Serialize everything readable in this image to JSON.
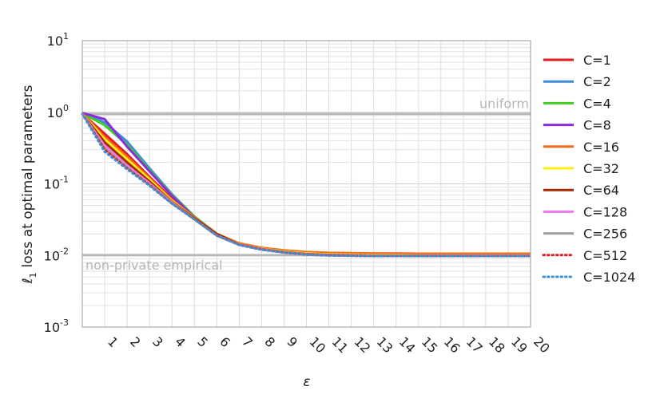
{
  "chart_data": {
    "type": "line",
    "title": "",
    "xlabel": "ε",
    "ylabel": "ℓ₁ loss at optimal parameters",
    "ylabel_main": "loss at optimal parameters",
    "ylabel_symbol": "ℓ",
    "ylabel_subscript": "1",
    "y_scale": "log",
    "ylim": [
      0.001,
      10
    ],
    "xlim": [
      0,
      20
    ],
    "x_ticks": [
      1,
      2,
      3,
      4,
      5,
      6,
      7,
      8,
      9,
      10,
      11,
      12,
      13,
      14,
      15,
      16,
      17,
      18,
      19,
      20
    ],
    "y_ticks": [
      {
        "base": "10",
        "exp": "-3"
      },
      {
        "base": "10",
        "exp": "-2"
      },
      {
        "base": "10",
        "exp": "-1"
      },
      {
        "base": "10",
        "exp": "0"
      },
      {
        "base": "10",
        "exp": "1"
      }
    ],
    "grid": true,
    "legend_position": "right",
    "reference_lines": [
      {
        "label": "uniform",
        "y": 0.95
      },
      {
        "label": "non-private empirical",
        "y": 0.0101
      }
    ],
    "x": [
      0,
      1,
      2,
      3,
      4,
      5,
      6,
      7,
      8,
      9,
      10,
      11,
      12,
      13,
      14,
      15,
      16,
      17,
      18,
      19,
      20
    ],
    "series": [
      {
        "name": "C=1",
        "color": "#e41a1c",
        "style": "solid",
        "values": [
          0.95,
          0.5,
          0.26,
          0.125,
          0.062,
          0.034,
          0.02,
          0.0145,
          0.0125,
          0.0115,
          0.0108,
          0.0105,
          0.0104,
          0.0103,
          0.0103,
          0.0102,
          0.0102,
          0.0102,
          0.0102,
          0.0102,
          0.0102
        ]
      },
      {
        "name": "C=2",
        "color": "#3b8fd9",
        "style": "solid",
        "values": [
          0.97,
          0.72,
          0.39,
          0.165,
          0.072,
          0.035,
          0.02,
          0.0145,
          0.0125,
          0.0115,
          0.0108,
          0.0104,
          0.0103,
          0.0102,
          0.0102,
          0.0101,
          0.0101,
          0.0101,
          0.0101,
          0.0101,
          0.0101
        ]
      },
      {
        "name": "C=4",
        "color": "#44cc22",
        "style": "solid",
        "values": [
          0.97,
          0.66,
          0.35,
          0.155,
          0.07,
          0.035,
          0.02,
          0.0146,
          0.0126,
          0.0115,
          0.0108,
          0.0105,
          0.0104,
          0.0103,
          0.0103,
          0.0102,
          0.0102,
          0.0102,
          0.0102,
          0.0102,
          0.0102
        ]
      },
      {
        "name": "C=8",
        "color": "#8a2be2",
        "style": "solid",
        "values": [
          0.98,
          0.8,
          0.33,
          0.15,
          0.068,
          0.034,
          0.02,
          0.0145,
          0.0125,
          0.0114,
          0.0107,
          0.0103,
          0.0102,
          0.0101,
          0.0101,
          0.01,
          0.01,
          0.01,
          0.01,
          0.01,
          0.01
        ]
      },
      {
        "name": "C=16",
        "color": "#f26b1d",
        "style": "solid",
        "values": [
          0.96,
          0.45,
          0.24,
          0.12,
          0.06,
          0.034,
          0.02,
          0.0148,
          0.0128,
          0.0118,
          0.0112,
          0.0109,
          0.0108,
          0.0107,
          0.0107,
          0.0106,
          0.0106,
          0.0106,
          0.0106,
          0.0106,
          0.0106
        ]
      },
      {
        "name": "C=32",
        "color": "#ffee11",
        "style": "solid",
        "values": [
          0.95,
          0.42,
          0.22,
          0.115,
          0.058,
          0.033,
          0.02,
          0.0144,
          0.0124,
          0.0114,
          0.0107,
          0.0104,
          0.0103,
          0.0102,
          0.0102,
          0.0101,
          0.0101,
          0.0101,
          0.0101,
          0.0101,
          0.0101
        ]
      },
      {
        "name": "C=64",
        "color": "#a52a00",
        "style": "solid",
        "values": [
          0.95,
          0.38,
          0.2,
          0.108,
          0.056,
          0.033,
          0.02,
          0.0143,
          0.0123,
          0.0112,
          0.0105,
          0.0102,
          0.0101,
          0.01,
          0.01,
          0.01,
          0.01,
          0.01,
          0.01,
          0.01,
          0.01
        ]
      },
      {
        "name": "C=128",
        "color": "#ee77ee",
        "style": "solid",
        "values": [
          0.95,
          0.34,
          0.18,
          0.102,
          0.055,
          0.032,
          0.019,
          0.0142,
          0.0122,
          0.0111,
          0.0104,
          0.0101,
          0.01,
          0.0099,
          0.0099,
          0.0099,
          0.0099,
          0.0099,
          0.0099,
          0.0099,
          0.0099
        ]
      },
      {
        "name": "C=256",
        "color": "#a0a0a0",
        "style": "solid",
        "values": [
          0.95,
          0.31,
          0.17,
          0.098,
          0.054,
          0.032,
          0.019,
          0.0141,
          0.0121,
          0.011,
          0.0103,
          0.01,
          0.0099,
          0.0098,
          0.0098,
          0.0098,
          0.0098,
          0.0098,
          0.0098,
          0.0098,
          0.0098
        ]
      },
      {
        "name": "C=512",
        "color": "#e41a1c",
        "style": "dotted",
        "values": [
          0.95,
          0.3,
          0.165,
          0.096,
          0.053,
          0.032,
          0.019,
          0.0141,
          0.0121,
          0.011,
          0.0103,
          0.01,
          0.0099,
          0.0098,
          0.0098,
          0.0098,
          0.0098,
          0.0098,
          0.0098,
          0.0098,
          0.0098
        ]
      },
      {
        "name": "C=1024",
        "color": "#3b8fd9",
        "style": "dotted",
        "values": [
          0.95,
          0.28,
          0.16,
          0.094,
          0.053,
          0.032,
          0.019,
          0.014,
          0.012,
          0.011,
          0.0103,
          0.01,
          0.0099,
          0.0098,
          0.0098,
          0.0098,
          0.0098,
          0.0098,
          0.0098,
          0.0098,
          0.0098
        ]
      }
    ]
  }
}
